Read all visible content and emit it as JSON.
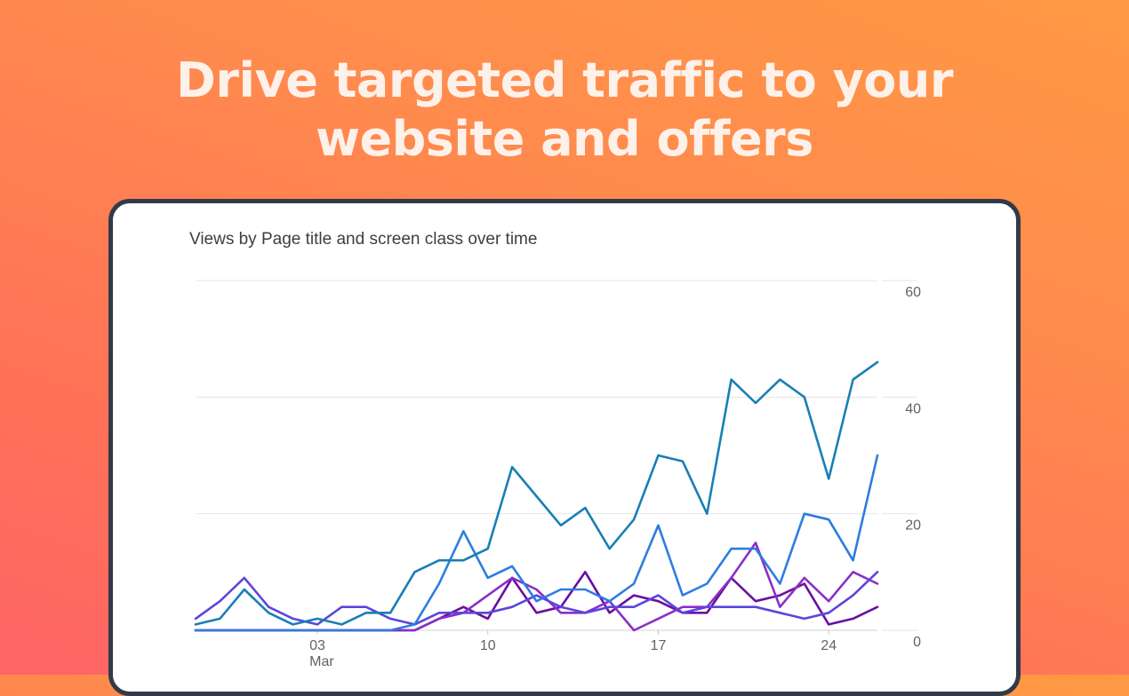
{
  "headline": {
    "line1": "Drive targeted traffic to your",
    "line2": "website and offers"
  },
  "chart_data": {
    "type": "line",
    "title": "Views by Page title and screen class over time",
    "xlabel": "",
    "ylabel": "",
    "ylim": [
      0,
      60
    ],
    "yticks": [
      "0",
      "20",
      "40",
      "60"
    ],
    "xticks": [
      {
        "day": 3,
        "label": "03",
        "sublabel": "Mar"
      },
      {
        "day": 10,
        "label": "10",
        "sublabel": ""
      },
      {
        "day": 17,
        "label": "17",
        "sublabel": ""
      },
      {
        "day": 24,
        "label": "24",
        "sublabel": ""
      }
    ],
    "x": [
      -2,
      -1,
      0,
      1,
      2,
      3,
      4,
      5,
      6,
      7,
      8,
      9,
      10,
      11,
      12,
      13,
      14,
      15,
      16,
      17,
      18,
      19,
      20,
      21,
      22,
      23,
      24,
      25,
      26
    ],
    "grid": true,
    "legend": "none",
    "series": [
      {
        "color": "#1a7fb5",
        "values": [
          1,
          2,
          7,
          3,
          1,
          2,
          1,
          3,
          3,
          10,
          12,
          12,
          14,
          28,
          23,
          18,
          21,
          14,
          19,
          30,
          29,
          20,
          43,
          39,
          43,
          40,
          26,
          43,
          46
        ]
      },
      {
        "color": "#2d7de0",
        "values": [
          0,
          0,
          0,
          0,
          0,
          0,
          0,
          0,
          0,
          1,
          8,
          17,
          9,
          11,
          5,
          7,
          7,
          5,
          8,
          18,
          6,
          8,
          14,
          14,
          8,
          20,
          19,
          12,
          30
        ]
      },
      {
        "color": "#5b46dc",
        "values": [
          2,
          5,
          9,
          4,
          2,
          1,
          4,
          4,
          2,
          1,
          3,
          3,
          3,
          4,
          6,
          4,
          3,
          4,
          4,
          6,
          3,
          4,
          4,
          4,
          3,
          2,
          3,
          6,
          10
        ]
      },
      {
        "color": "#8a2fc8",
        "values": [
          0,
          0,
          0,
          0,
          0,
          0,
          0,
          0,
          0,
          0,
          2,
          3,
          6,
          9,
          7,
          3,
          3,
          5,
          0,
          2,
          4,
          4,
          9,
          15,
          4,
          9,
          5,
          10,
          8
        ]
      },
      {
        "color": "#6a0fa0",
        "values": [
          0,
          0,
          0,
          0,
          0,
          0,
          0,
          0,
          0,
          0,
          2,
          4,
          2,
          9,
          3,
          4,
          10,
          3,
          6,
          5,
          3,
          3,
          9,
          5,
          6,
          8,
          1,
          2,
          4
        ]
      }
    ]
  },
  "colors": {
    "background_start": "#ff9944",
    "background_end": "#ff6466",
    "card_border": "#323a4a",
    "grid": "#e6e6e6"
  }
}
